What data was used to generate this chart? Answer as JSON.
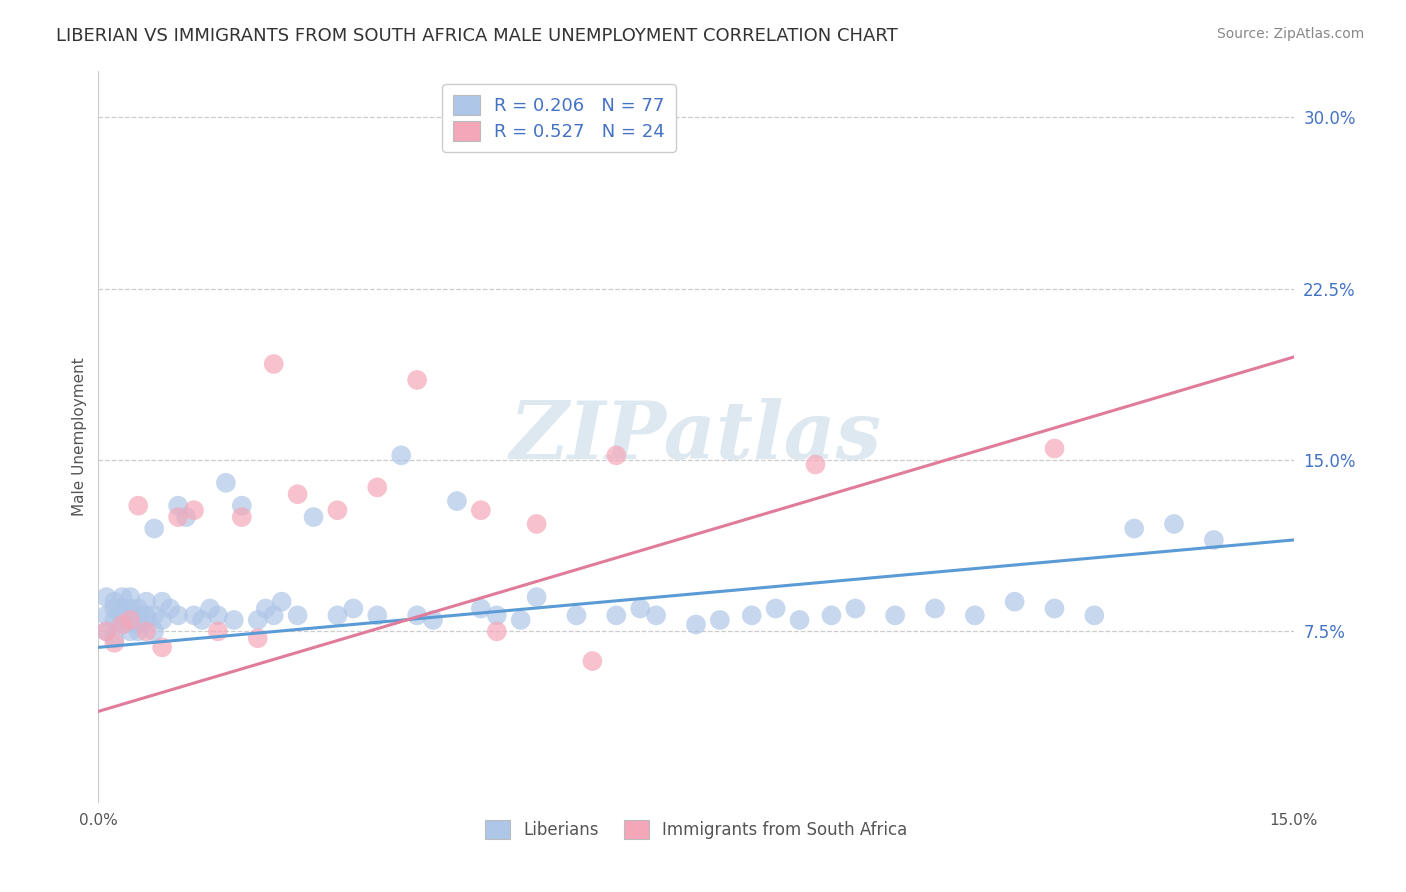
{
  "title": "LIBERIAN VS IMMIGRANTS FROM SOUTH AFRICA MALE UNEMPLOYMENT CORRELATION CHART",
  "source": "Source: ZipAtlas.com",
  "ylabel": "Male Unemployment",
  "xlim": [
    0.0,
    0.15
  ],
  "ylim": [
    0.0,
    0.32
  ],
  "ytick_vals_right": [
    0.075,
    0.15,
    0.225,
    0.3
  ],
  "ytick_labels_right": [
    "7.5%",
    "15.0%",
    "22.5%",
    "30.0%"
  ],
  "liberian_color": "#aec6e8",
  "immigrant_color": "#f4a7b9",
  "liberian_line_color": "#5b9bd5",
  "immigrant_line_color": "#e07b9a",
  "liberian_R": 0.206,
  "liberian_N": 77,
  "immigrant_R": 0.527,
  "immigrant_N": 24,
  "legend_color": "#4472c4",
  "watermark": "ZIPatlas",
  "watermark_color": "#dde8f0",
  "grid_color": "#cccccc",
  "liberian_x": [
    0.001,
    0.001,
    0.001,
    0.002,
    0.002,
    0.002,
    0.002,
    0.003,
    0.003,
    0.003,
    0.003,
    0.003,
    0.004,
    0.004,
    0.004,
    0.004,
    0.005,
    0.005,
    0.005,
    0.005,
    0.005,
    0.006,
    0.006,
    0.006,
    0.007,
    0.007,
    0.007,
    0.008,
    0.008,
    0.009,
    0.01,
    0.01,
    0.011,
    0.012,
    0.013,
    0.014,
    0.015,
    0.016,
    0.017,
    0.018,
    0.02,
    0.021,
    0.022,
    0.023,
    0.025,
    0.027,
    0.03,
    0.032,
    0.035,
    0.038,
    0.04,
    0.042,
    0.045,
    0.048,
    0.05,
    0.053,
    0.055,
    0.06,
    0.065,
    0.068,
    0.07,
    0.075,
    0.078,
    0.082,
    0.085,
    0.088,
    0.092,
    0.095,
    0.1,
    0.105,
    0.11,
    0.115,
    0.12,
    0.125,
    0.13,
    0.135,
    0.14
  ],
  "liberian_y": [
    0.075,
    0.082,
    0.09,
    0.08,
    0.085,
    0.088,
    0.072,
    0.078,
    0.085,
    0.09,
    0.08,
    0.082,
    0.075,
    0.082,
    0.085,
    0.09,
    0.08,
    0.082,
    0.075,
    0.085,
    0.078,
    0.082,
    0.08,
    0.088,
    0.12,
    0.082,
    0.075,
    0.088,
    0.08,
    0.085,
    0.13,
    0.082,
    0.125,
    0.082,
    0.08,
    0.085,
    0.082,
    0.14,
    0.08,
    0.13,
    0.08,
    0.085,
    0.082,
    0.088,
    0.082,
    0.125,
    0.082,
    0.085,
    0.082,
    0.152,
    0.082,
    0.08,
    0.132,
    0.085,
    0.082,
    0.08,
    0.09,
    0.082,
    0.082,
    0.085,
    0.082,
    0.078,
    0.08,
    0.082,
    0.085,
    0.08,
    0.082,
    0.085,
    0.082,
    0.085,
    0.082,
    0.088,
    0.085,
    0.082,
    0.12,
    0.122,
    0.115
  ],
  "immigrant_x": [
    0.001,
    0.002,
    0.003,
    0.004,
    0.005,
    0.006,
    0.008,
    0.01,
    0.012,
    0.015,
    0.018,
    0.02,
    0.022,
    0.025,
    0.03,
    0.035,
    0.04,
    0.048,
    0.05,
    0.055,
    0.062,
    0.065,
    0.09,
    0.12
  ],
  "immigrant_y": [
    0.075,
    0.07,
    0.078,
    0.08,
    0.13,
    0.075,
    0.068,
    0.125,
    0.128,
    0.075,
    0.125,
    0.072,
    0.192,
    0.135,
    0.128,
    0.138,
    0.185,
    0.128,
    0.075,
    0.122,
    0.062,
    0.152,
    0.148,
    0.155
  ],
  "trendline_lib_x0": 0.0,
  "trendline_lib_y0": 0.068,
  "trendline_lib_x1": 0.15,
  "trendline_lib_y1": 0.115,
  "trendline_imm_x0": 0.0,
  "trendline_imm_y0": 0.04,
  "trendline_imm_x1": 0.15,
  "trendline_imm_y1": 0.195
}
